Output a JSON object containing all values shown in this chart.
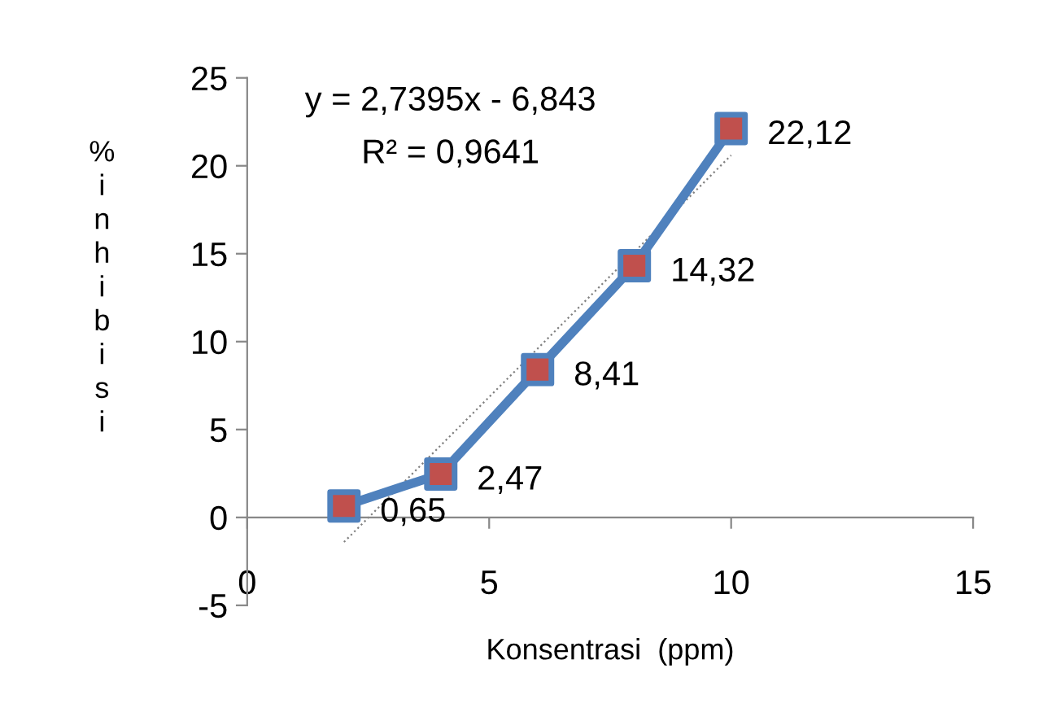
{
  "chart_data": {
    "type": "line",
    "xlabel": "Konsentrasi  (ppm)",
    "ylabel": "%\ni\nn\nh\ni\nb\ni\ns\ni",
    "xlim": [
      0,
      15
    ],
    "xticks": [
      0,
      5,
      10,
      15
    ],
    "ylim": [
      -5,
      25
    ],
    "yticks": [
      -5,
      0,
      5,
      10,
      15,
      20,
      25
    ],
    "grid": false,
    "legend": false,
    "annotations": [
      "y = 2,7395x - 6,843",
      "R² = 0,9641"
    ],
    "series": [
      {
        "x": [
          2,
          4,
          6,
          8,
          10
        ],
        "values": [
          0.65,
          2.47,
          8.41,
          14.32,
          22.12
        ],
        "color": "#4f81bd",
        "colors": [
          "#c0504d",
          "#c0504d",
          "#c0504d",
          "#c0504d",
          "#c0504d"
        ],
        "marker": "square",
        "line_style": "solid",
        "value_labels": [
          "0,65",
          "2,47",
          "8,41",
          "14,32",
          "22,12"
        ]
      },
      {
        "x": [
          2,
          10
        ],
        "values": [
          -1.4,
          20.6
        ],
        "color": "#808080",
        "marker": "none",
        "line_style": "dotted"
      }
    ]
  }
}
